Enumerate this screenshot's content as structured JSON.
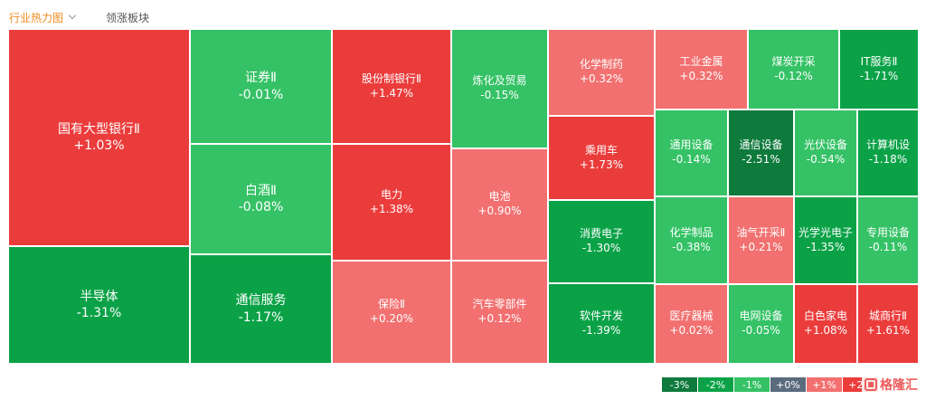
{
  "tabs": {
    "active": "行业热力图",
    "inactive": "领涨板块"
  },
  "brand": {
    "text": "格隆汇"
  },
  "colors": {
    "dark_green": "#0e7a3c",
    "green": "#0ba247",
    "light_green": "#35c266",
    "neutral": "#5b6b7e",
    "light_red": "#f27070",
    "red": "#eb3c3c"
  },
  "legend": [
    {
      "label": "-3%",
      "color": "#0e7a3c"
    },
    {
      "label": "-2%",
      "color": "#0ba247"
    },
    {
      "label": "-1%",
      "color": "#35c266"
    },
    {
      "label": "+0%",
      "color": "#5b6b7e"
    },
    {
      "label": "+1%",
      "color": "#f27070"
    },
    {
      "label": "+2%",
      "color": "#eb3c3c"
    }
  ],
  "chart_data": {
    "type": "treemap",
    "items": [
      {
        "name": "国有大型银行Ⅱ",
        "change": "+1.03%",
        "value": 1.03,
        "color": "#eb3c3c"
      },
      {
        "name": "半导体",
        "change": "-1.31%",
        "value": -1.31,
        "color": "#0ba247"
      },
      {
        "name": "证券Ⅱ",
        "change": "-0.01%",
        "value": -0.01,
        "color": "#35c266"
      },
      {
        "name": "白酒Ⅱ",
        "change": "-0.08%",
        "value": -0.08,
        "color": "#35c266"
      },
      {
        "name": "通信服务",
        "change": "-1.17%",
        "value": -1.17,
        "color": "#0ba247"
      },
      {
        "name": "股份制银行Ⅱ",
        "change": "+1.47%",
        "value": 1.47,
        "color": "#eb3c3c"
      },
      {
        "name": "电力",
        "change": "+1.38%",
        "value": 1.38,
        "color": "#eb3c3c"
      },
      {
        "name": "保险Ⅱ",
        "change": "+0.20%",
        "value": 0.2,
        "color": "#f27070"
      },
      {
        "name": "炼化及贸易",
        "change": "-0.15%",
        "value": -0.15,
        "color": "#35c266"
      },
      {
        "name": "电池",
        "change": "+0.90%",
        "value": 0.9,
        "color": "#f27070"
      },
      {
        "name": "汽车零部件",
        "change": "+0.12%",
        "value": 0.12,
        "color": "#f27070"
      },
      {
        "name": "化学制药",
        "change": "+0.32%",
        "value": 0.32,
        "color": "#f27070"
      },
      {
        "name": "乘用车",
        "change": "+1.73%",
        "value": 1.73,
        "color": "#eb3c3c"
      },
      {
        "name": "消费电子",
        "change": "-1.30%",
        "value": -1.3,
        "color": "#0ba247"
      },
      {
        "name": "软件开发",
        "change": "-1.39%",
        "value": -1.39,
        "color": "#0ba247"
      },
      {
        "name": "工业金属",
        "change": "+0.32%",
        "value": 0.32,
        "color": "#f27070"
      },
      {
        "name": "煤炭开采",
        "change": "-0.12%",
        "value": -0.12,
        "color": "#35c266"
      },
      {
        "name": "IT服务Ⅱ",
        "change": "-1.71%",
        "value": -1.71,
        "color": "#0ba247"
      },
      {
        "name": "通用设备",
        "change": "-0.14%",
        "value": -0.14,
        "color": "#35c266"
      },
      {
        "name": "通信设备",
        "change": "-2.51%",
        "value": -2.51,
        "color": "#0e7a3c"
      },
      {
        "name": "光伏设备",
        "change": "-0.54%",
        "value": -0.54,
        "color": "#35c266"
      },
      {
        "name": "计算机设",
        "change": "-1.18%",
        "value": -1.18,
        "color": "#0ba247"
      },
      {
        "name": "化学制品",
        "change": "-0.38%",
        "value": -0.38,
        "color": "#35c266"
      },
      {
        "name": "油气开采Ⅱ",
        "change": "+0.21%",
        "value": 0.21,
        "color": "#f27070"
      },
      {
        "name": "光学光电子",
        "change": "-1.35%",
        "value": -1.35,
        "color": "#0ba247"
      },
      {
        "name": "专用设备",
        "change": "-0.11%",
        "value": -0.11,
        "color": "#35c266"
      },
      {
        "name": "医疗器械",
        "change": "+0.02%",
        "value": 0.02,
        "color": "#f27070"
      },
      {
        "name": "电网设备",
        "change": "-0.05%",
        "value": -0.05,
        "color": "#35c266"
      },
      {
        "name": "白色家电",
        "change": "+1.08%",
        "value": 1.08,
        "color": "#eb3c3c"
      },
      {
        "name": "城商行Ⅱ",
        "change": "+1.61%",
        "value": 1.61,
        "color": "#eb3c3c"
      }
    ]
  }
}
